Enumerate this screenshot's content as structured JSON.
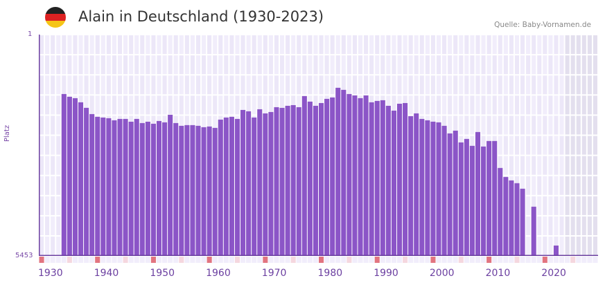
{
  "header": {
    "title": "Alain in Deutschland (1930-2023)",
    "source": "Quelle: Baby-Vornamen.de",
    "flag_colors": [
      "#222222",
      "#dd2222",
      "#f5c518"
    ]
  },
  "axis": {
    "ylabel": "Platz",
    "ytop": "1",
    "ybottom": "5453",
    "xlabels": [
      "1930",
      "1940",
      "1950",
      "1960",
      "1970",
      "1980",
      "1990",
      "2000",
      "2010",
      "2020"
    ]
  },
  "colors": {
    "bar": "#8b55c7",
    "grid_a": "#f1edfb",
    "grid_b": "#ece7f8",
    "future": "#e3dfee",
    "marker": "#e27480",
    "marker_light": "#f5d7df",
    "axis": "#6b3fa0"
  },
  "chart_data": {
    "type": "bar",
    "title": "Alain in Deutschland (1930-2023)",
    "xlabel": "",
    "ylabel": "Platz",
    "ylim": [
      5453,
      1
    ],
    "y_inverted": true,
    "x": [
      1933,
      1934,
      1935,
      1936,
      1937,
      1938,
      1939,
      1940,
      1941,
      1942,
      1943,
      1944,
      1945,
      1946,
      1947,
      1948,
      1949,
      1950,
      1951,
      1952,
      1953,
      1954,
      1955,
      1956,
      1957,
      1958,
      1959,
      1960,
      1961,
      1962,
      1963,
      1964,
      1965,
      1966,
      1967,
      1968,
      1969,
      1970,
      1971,
      1972,
      1973,
      1974,
      1975,
      1976,
      1977,
      1978,
      1979,
      1980,
      1981,
      1982,
      1983,
      1984,
      1985,
      1986,
      1987,
      1988,
      1989,
      1990,
      1991,
      1992,
      1993,
      1994,
      1995,
      1996,
      1997,
      1998,
      1999,
      2000,
      2001,
      2002,
      2003,
      2004,
      2005,
      2006,
      2007,
      2008,
      2009,
      2010,
      2011,
      2012,
      2013,
      2014,
      2015,
      2017,
      2021
    ],
    "values": [
      1465,
      1533,
      1567,
      1669,
      1805,
      1959,
      2027,
      2044,
      2061,
      2112,
      2078,
      2078,
      2147,
      2078,
      2180,
      2147,
      2197,
      2129,
      2163,
      1976,
      2180,
      2248,
      2231,
      2231,
      2248,
      2282,
      2265,
      2299,
      2095,
      2044,
      2027,
      2078,
      1857,
      1891,
      2044,
      1840,
      1942,
      1908,
      1789,
      1806,
      1755,
      1738,
      1789,
      1516,
      1652,
      1755,
      1687,
      1584,
      1550,
      1311,
      1362,
      1465,
      1499,
      1567,
      1499,
      1669,
      1635,
      1618,
      1755,
      1874,
      1704,
      1687,
      2010,
      1942,
      2078,
      2112,
      2146,
      2163,
      2248,
      2435,
      2367,
      2657,
      2571,
      2741,
      2401,
      2758,
      2622,
      2622,
      3286,
      3508,
      3593,
      3661,
      3797,
      4240,
      5197
    ]
  }
}
